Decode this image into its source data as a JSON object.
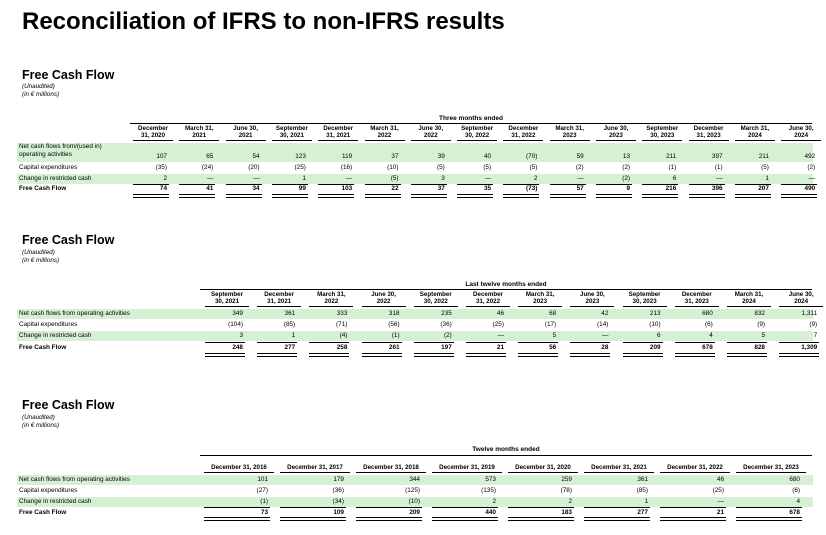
{
  "title": "Reconciliation of IFRS to non-IFRS results",
  "sections": [
    {
      "title": "Free Cash Flow",
      "unaudited": "(Unaudited)",
      "units": "(in € millions)",
      "group_header": "Three months ended",
      "columns": [
        "December\n31, 2020",
        "March 31,\n2021",
        "June 30,\n2021",
        "September\n30, 2021",
        "December\n31, 2021",
        "March 31,\n2022",
        "June 30,\n2022",
        "September\n30, 2022",
        "December\n31, 2022",
        "March 31,\n2023",
        "June 30,\n2023",
        "September\n30, 2023",
        "December\n31, 2023",
        "March 31,\n2024",
        "June 30,\n2024"
      ],
      "rows": [
        {
          "label": "Net cash flows from/(used in)\noperating activities",
          "values": [
            "107",
            "65",
            "54",
            "123",
            "119",
            "37",
            "39",
            "40",
            "(70)",
            "59",
            "13",
            "211",
            "397",
            "211",
            "492"
          ]
        },
        {
          "label": "Capital expenditures",
          "values": [
            "(35)",
            "(24)",
            "(20)",
            "(25)",
            "(16)",
            "(10)",
            "(5)",
            "(5)",
            "(5)",
            "(2)",
            "(2)",
            "(1)",
            "(1)",
            "(5)",
            "(2)"
          ]
        },
        {
          "label": "Change in restricted cash",
          "values": [
            "2",
            "—",
            "—",
            "1",
            "—",
            "(5)",
            "3",
            "—",
            "2",
            "—",
            "(2)",
            "6",
            "—",
            "1",
            "—"
          ]
        },
        {
          "label": "Free Cash Flow",
          "values": [
            "74",
            "41",
            "34",
            "99",
            "103",
            "22",
            "37",
            "35",
            "(73)",
            "57",
            "9",
            "216",
            "396",
            "207",
            "490"
          ]
        }
      ]
    },
    {
      "title": "Free Cash Flow",
      "unaudited": "(Unaudited)",
      "units": "(in € millions)",
      "group_header": "Last twelve months ended",
      "columns": [
        "September\n30, 2021",
        "December\n31, 2021",
        "March 31,\n2022",
        "June 30,\n2022",
        "September\n30, 2022",
        "December\n31, 2022",
        "March 31,\n2023",
        "June 30,\n2023",
        "September\n30, 2023",
        "December\n31, 2023",
        "March 31,\n2024",
        "June 30,\n2024"
      ],
      "rows": [
        {
          "label": "Net cash flows from operating activities",
          "values": [
            "349",
            "361",
            "333",
            "318",
            "235",
            "46",
            "68",
            "42",
            "213",
            "680",
            "832",
            "1,311"
          ]
        },
        {
          "label": "Capital expenditures",
          "values": [
            "(104)",
            "(85)",
            "(71)",
            "(56)",
            "(36)",
            "(25)",
            "(17)",
            "(14)",
            "(10)",
            "(6)",
            "(9)",
            "(9)"
          ]
        },
        {
          "label": "Change in restricted cash",
          "values": [
            "3",
            "1",
            "(4)",
            "(1)",
            "(2)",
            "—",
            "5",
            "—",
            "6",
            "4",
            "5",
            "7"
          ]
        },
        {
          "label": "Free Cash Flow",
          "values": [
            "248",
            "277",
            "258",
            "261",
            "197",
            "21",
            "56",
            "28",
            "209",
            "678",
            "828",
            "1,309"
          ]
        }
      ]
    },
    {
      "title": "Free Cash Flow",
      "unaudited": "(Unaudited)",
      "units": "(in € millions)",
      "group_header": "Twelve months ended",
      "columns": [
        "December 31, 2016",
        "December 31, 2017",
        "December 31, 2018",
        "December 31, 2019",
        "December 31, 2020",
        "December 31, 2021",
        "December 31, 2022",
        "December 31, 2023"
      ],
      "rows": [
        {
          "label": "Net cash flows from operating activities",
          "values": [
            "101",
            "179",
            "344",
            "573",
            "259",
            "361",
            "46",
            "680"
          ]
        },
        {
          "label": "Capital expenditures",
          "values": [
            "(27)",
            "(36)",
            "(125)",
            "(135)",
            "(78)",
            "(85)",
            "(25)",
            "(6)"
          ]
        },
        {
          "label": "Change in restricted cash",
          "values": [
            "(1)",
            "(34)",
            "(10)",
            "2",
            "2",
            "1",
            "—",
            "4"
          ]
        },
        {
          "label": "Free Cash Flow",
          "values": [
            "73",
            "109",
            "209",
            "440",
            "183",
            "277",
            "21",
            "678"
          ]
        }
      ]
    }
  ]
}
